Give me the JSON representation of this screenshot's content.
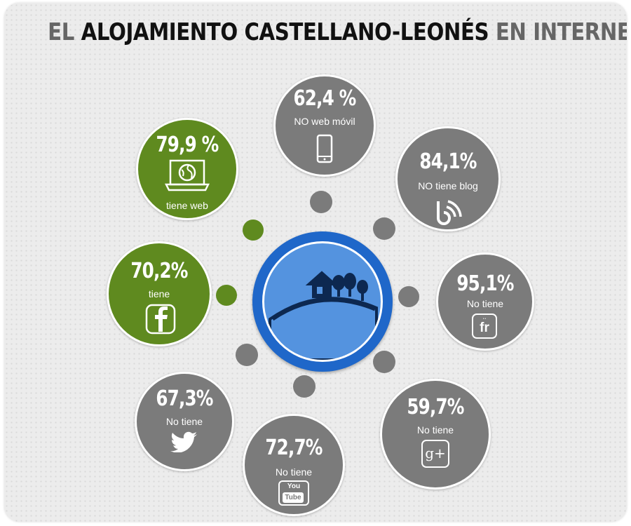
{
  "title": {
    "part1": "EL ",
    "part2": "ALOJAMIENTO CASTELLANO-LEONÉS",
    "part3": " EN INTERNET"
  },
  "items": {
    "web_movil": {
      "pct": "62,4 %",
      "label": "NO web móvil",
      "icon": "smartphone-icon"
    },
    "web": {
      "pct": "79,9 %",
      "label": "tiene web",
      "icon": "laptop-globe-icon"
    },
    "blog": {
      "pct": "84,1%",
      "label": "NO tiene blog",
      "icon": "blog-feed-icon"
    },
    "facebook": {
      "pct": "70,2%",
      "label": "tiene",
      "icon": "facebook-icon"
    },
    "friendfeed": {
      "pct": "95,1%",
      "label": "No tiene",
      "icon": "friendfeed-icon",
      "icon_text": "fr"
    },
    "twitter": {
      "pct": "67,3%",
      "label": "No tiene",
      "icon": "twitter-bird-icon"
    },
    "youtube": {
      "pct": "72,7%",
      "label": "No tiene",
      "icon": "youtube-icon",
      "icon_text_top": "You",
      "icon_text_bottom": "Tube"
    },
    "google_plus": {
      "pct": "59,7%",
      "label": "No tiene",
      "icon": "google-plus-icon",
      "icon_text": "g+"
    }
  },
  "center": {
    "icon": "rural-house-hill-icon"
  },
  "colors": {
    "grey": "#7b7b7b",
    "green": "#5f8a1f",
    "blue": "#1f67c9",
    "blue_light": "#5493df"
  }
}
